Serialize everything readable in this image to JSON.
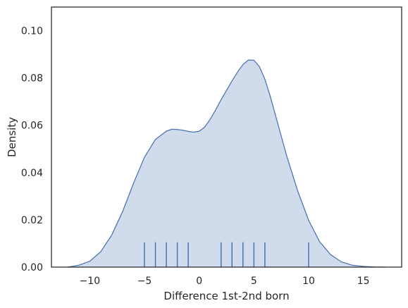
{
  "chart_data": {
    "type": "area",
    "title": "",
    "xlabel": "Difference 1st-2nd born",
    "ylabel": "Density",
    "xlim": [
      -13.5,
      18.5
    ],
    "ylim": [
      0,
      0.11
    ],
    "xticks": [
      -10,
      -5,
      0,
      5,
      10,
      15
    ],
    "xtick_labels": [
      "−10",
      "−5",
      "0",
      "5",
      "10",
      "15"
    ],
    "yticks": [
      0.0,
      0.02,
      0.04,
      0.06,
      0.08,
      0.1
    ],
    "ytick_labels": [
      "0.00",
      "0.02",
      "0.04",
      "0.06",
      "0.08",
      "0.10"
    ],
    "grid": false,
    "legend": "none",
    "series": [
      {
        "kind": "kde",
        "color": "#4c72b0",
        "fill": "#d0dbeb",
        "x": [
          -12,
          -11,
          -10,
          -9,
          -8,
          -7,
          -6,
          -5,
          -4,
          -3,
          -2.5,
          -2,
          -1.5,
          -1,
          -0.5,
          0,
          0.5,
          1,
          1.5,
          2,
          2.5,
          3,
          3.5,
          4,
          4.5,
          5,
          5.5,
          6,
          6.5,
          7,
          7.5,
          8,
          9,
          10,
          11,
          12,
          13,
          14,
          15,
          16,
          17
        ],
        "y": [
          0.0,
          0.0008,
          0.0025,
          0.0065,
          0.0135,
          0.0235,
          0.0355,
          0.0465,
          0.054,
          0.0575,
          0.0583,
          0.0582,
          0.0579,
          0.0574,
          0.0571,
          0.0575,
          0.0592,
          0.0625,
          0.0665,
          0.0708,
          0.0748,
          0.0788,
          0.0825,
          0.0857,
          0.0876,
          0.0875,
          0.0848,
          0.0795,
          0.0722,
          0.0638,
          0.0553,
          0.047,
          0.0322,
          0.0198,
          0.0108,
          0.0053,
          0.0022,
          0.0008,
          0.0003,
          0.0001,
          0.0
        ]
      },
      {
        "kind": "rug",
        "color": "#4c72b0",
        "height": 0.0105,
        "values": [
          -5,
          -4,
          -3,
          -2,
          -1,
          2,
          3,
          4,
          5,
          6,
          10
        ]
      }
    ]
  }
}
